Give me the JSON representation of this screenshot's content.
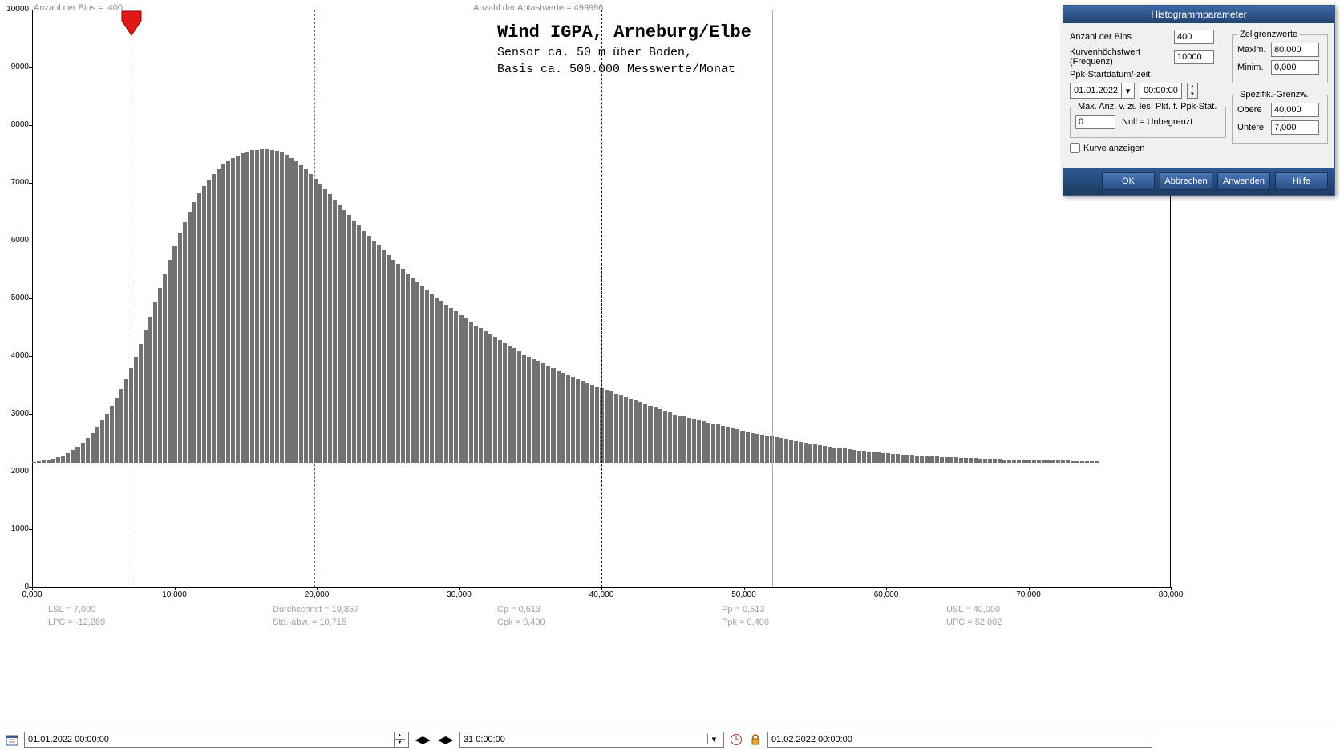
{
  "top_info": {
    "bins_label": "Anzahl der Bins =",
    "bins_value": "400",
    "samples_label": "Anzahl der Abtastwerte = 499996"
  },
  "chart": {
    "type": "histogram",
    "title_main": "Wind  IGPA, Arneburg/Elbe",
    "title_sub1": "Sensor ca. 50 m über Boden,",
    "title_sub2": "Basis ca. 500.000 Messwerte/Monat",
    "title_font": "Courier New",
    "title_fontsize_main": 22,
    "title_fontsize_sub": 15,
    "bar_color": "#717171",
    "background_color": "#ffffff",
    "border_color": "#000000",
    "xlim": [
      0,
      80000
    ],
    "ylim": [
      0,
      10000
    ],
    "xtick_step": 10000,
    "ytick_step": 1000,
    "xtick_labels": [
      "0,000",
      "10,000",
      "20,000",
      "30,000",
      "40,000",
      "50,000",
      "60,000",
      "70,000",
      "80,000"
    ],
    "ytick_labels": [
      "0",
      "1000",
      "2000",
      "3000",
      "4000",
      "5000",
      "6000",
      "7000",
      "8000",
      "9000",
      "10000"
    ],
    "marker_x": 7000,
    "marker_color": "#e01818",
    "vlines": [
      {
        "x": 7000,
        "style": "dashdot"
      },
      {
        "x": 19857,
        "style": "dashed"
      },
      {
        "x": 40000,
        "style": "dashdot"
      },
      {
        "x": 52002,
        "style": "solid_light"
      }
    ],
    "n_bars": 220,
    "x_last_bar": 75000,
    "values": [
      20,
      30,
      40,
      55,
      75,
      100,
      130,
      170,
      220,
      280,
      350,
      430,
      520,
      620,
      730,
      850,
      980,
      1120,
      1280,
      1450,
      1640,
      1840,
      2060,
      2290,
      2530,
      2780,
      3030,
      3280,
      3520,
      3750,
      3970,
      4170,
      4350,
      4510,
      4660,
      4790,
      4900,
      5000,
      5090,
      5160,
      5220,
      5280,
      5320,
      5360,
      5390,
      5410,
      5420,
      5430,
      5430,
      5420,
      5400,
      5370,
      5330,
      5280,
      5220,
      5150,
      5080,
      5000,
      4920,
      4830,
      4740,
      4650,
      4560,
      4470,
      4380,
      4290,
      4200,
      4110,
      4020,
      3930,
      3840,
      3760,
      3680,
      3600,
      3520,
      3440,
      3360,
      3280,
      3210,
      3140,
      3070,
      3000,
      2930,
      2860,
      2800,
      2740,
      2680,
      2620,
      2560,
      2500,
      2440,
      2380,
      2330,
      2280,
      2230,
      2180,
      2130,
      2080,
      2030,
      1980,
      1930,
      1880,
      1840,
      1800,
      1760,
      1720,
      1680,
      1640,
      1600,
      1560,
      1520,
      1480,
      1440,
      1410,
      1380,
      1350,
      1320,
      1290,
      1260,
      1230,
      1200,
      1170,
      1140,
      1110,
      1080,
      1050,
      1020,
      990,
      960,
      930,
      900,
      870,
      840,
      820,
      800,
      780,
      760,
      740,
      720,
      700,
      680,
      660,
      640,
      620,
      600,
      580,
      560,
      540,
      520,
      500,
      485,
      470,
      455,
      440,
      425,
      410,
      395,
      380,
      365,
      350,
      335,
      320,
      306,
      293,
      280,
      268,
      256,
      245,
      234,
      224,
      214,
      205,
      196,
      188,
      180,
      172,
      165,
      158,
      151,
      145,
      139,
      133,
      127,
      122,
      117,
      112,
      107,
      103,
      99,
      95,
      91,
      88,
      84,
      81,
      78,
      75,
      72,
      69,
      66,
      63,
      61,
      58,
      56,
      54,
      52,
      50,
      48,
      46,
      44,
      42,
      40,
      38,
      37,
      35,
      34,
      32,
      31,
      30,
      29,
      28
    ]
  },
  "stats": {
    "line1": {
      "lsl": "LSL = 7,000",
      "durchschnitt": "Durchschnitt = 19,857",
      "cp": "Cp = 0,513",
      "pp": "Pp = 0,513",
      "usl": "USL = 40,000"
    },
    "line2": {
      "lpc": "LPC = -12,289",
      "stdabw": "Std.-abw. = 10,715",
      "cpk": "Cpk = 0,400",
      "ppk": "Ppk = 0,400",
      "upc": "UPC = 52,002"
    }
  },
  "dialog": {
    "title": "Histogrammparameter",
    "bins_label": "Anzahl der Bins",
    "bins_value": "400",
    "freq_label": "Kurvenhöchstwert (Frequenz)",
    "freq_value": "10000",
    "ppk_date_label": "Ppk-Startdatum/-zeit",
    "date_value": "01.01.2022",
    "time_value": "00:00:00",
    "maxpts": {
      "legend": "Max. Anz. v. zu les. Pkt. f. Ppk-Stat.",
      "value": "0",
      "note": "Null = Unbegrenzt"
    },
    "show_curve_label": "Kurve anzeigen",
    "show_curve_checked": false,
    "cell_limits": {
      "legend": "Zellgrenzwerte",
      "max_label": "Maxim.",
      "max_value": "80,000",
      "min_label": "Minim.",
      "min_value": "0,000"
    },
    "spec_limits": {
      "legend": "Spezifik.-Grenzw.",
      "upper_label": "Obere",
      "upper_value": "40,000",
      "lower_label": "Untere",
      "lower_value": "7,000"
    },
    "buttons": {
      "ok": "OK",
      "cancel": "Abbrechen",
      "apply": "Anwenden",
      "help": "Hilfe"
    }
  },
  "bottom": {
    "start_datetime": "01.01.2022    00:00:00",
    "duration": "31 0:00:00",
    "end_datetime": "01.02.2022    00:00:00"
  }
}
